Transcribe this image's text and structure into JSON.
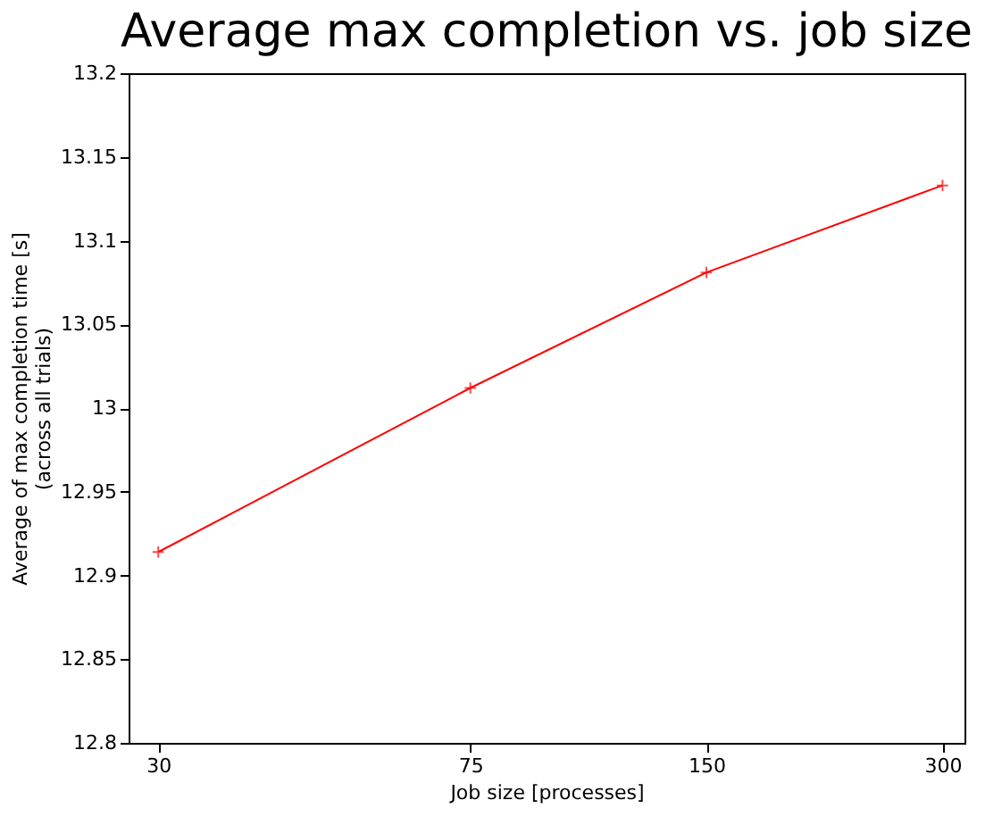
{
  "chart_data": {
    "type": "line",
    "title": "Average max completion vs. job size",
    "xlabel": "Job size [processes]",
    "ylabel": "Average of max completion time [s]\n(across all trials)",
    "x": [
      30,
      75,
      150,
      300
    ],
    "series": [
      {
        "color": "#ff0000",
        "values": [
          12.914,
          13.012,
          13.081,
          13.133
        ]
      }
    ],
    "log": "x",
    "xlim": [
      27.5,
      320
    ],
    "xticks": [
      30,
      75,
      150,
      300
    ],
    "ylim": [
      12.8,
      13.2
    ],
    "yticks": [
      12.8,
      12.85,
      12.9,
      12.95,
      13,
      13.05,
      13.1,
      13.15,
      13.2
    ],
    "grid": false,
    "marker": "cross",
    "line_style": "solid"
  }
}
